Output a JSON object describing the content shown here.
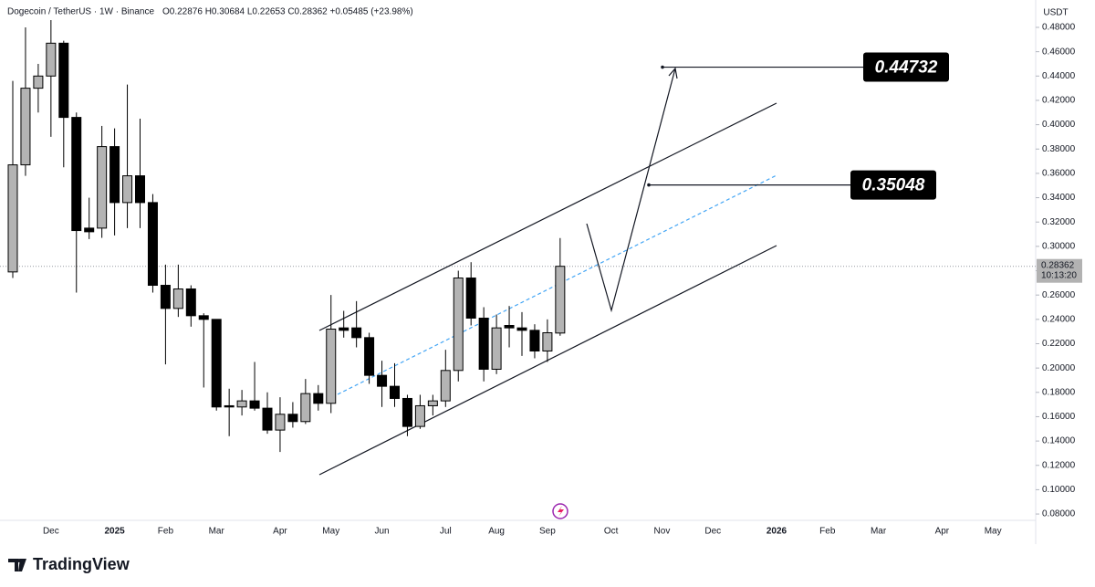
{
  "chart_data": {
    "type": "candlestick",
    "symbol": "Dogecoin / TetherUS · 1W · Binance",
    "ohlc_text": "O0.22876 H0.30684 L0.22653 C0.28362 +0.05485 (+23.98%)",
    "currency": "USDT",
    "categories": [
      null,
      null,
      null,
      "Dec",
      null,
      null,
      null,
      null,
      "2025",
      null,
      null,
      null,
      "Feb",
      null,
      null,
      null,
      "Mar",
      null,
      null,
      null,
      null,
      "Apr",
      null,
      null,
      null,
      "May",
      null,
      null,
      null,
      "Jun",
      null,
      null,
      null,
      null,
      "Jul",
      null,
      null,
      null,
      "Aug",
      null,
      null,
      null,
      "Sep",
      null,
      null,
      null,
      null,
      "Oct",
      null,
      null,
      null,
      "Nov",
      null,
      null,
      null,
      "Dec",
      null,
      null,
      null,
      null,
      "2026",
      null,
      null,
      null,
      "Feb",
      null,
      null,
      null,
      "Mar",
      null,
      null,
      null,
      null,
      "Apr",
      null,
      null,
      null,
      "May",
      null,
      null
    ],
    "open": [
      0.279,
      0.367,
      0.43,
      0.44,
      0.467,
      0.406,
      0.315,
      0.315,
      0.382,
      0.336,
      0.358,
      0.336,
      0.268,
      0.249,
      0.265,
      0.243,
      0.24,
      0.169,
      0.168,
      0.173,
      0.167,
      0.149,
      0.162,
      0.156,
      0.179,
      0.171,
      0.233,
      0.233,
      0.225,
      0.194,
      0.185,
      0.175,
      0.152,
      0.169,
      0.173,
      0.198,
      0.274,
      0.241,
      0.199,
      0.235,
      0.233,
      0.231,
      0.214,
      0.22876,
      null,
      null,
      null,
      null,
      null,
      null,
      null,
      null,
      null,
      null,
      null,
      null,
      null,
      null,
      null,
      null,
      null,
      null,
      null,
      null,
      null,
      null,
      null,
      null,
      null,
      null,
      null,
      null,
      null,
      null,
      null,
      null,
      null,
      null,
      null,
      null
    ],
    "high": [
      0.436,
      0.48,
      0.45,
      0.486,
      0.469,
      0.41,
      0.34,
      0.399,
      0.397,
      0.433,
      0.405,
      0.343,
      0.285,
      0.285,
      0.268,
      0.245,
      0.24,
      0.183,
      0.182,
      0.205,
      0.18,
      0.176,
      0.172,
      0.191,
      0.186,
      0.26,
      0.247,
      0.255,
      0.229,
      0.206,
      0.204,
      0.178,
      0.178,
      0.178,
      0.215,
      0.28,
      0.287,
      0.25,
      0.244,
      0.251,
      0.246,
      0.236,
      0.24,
      0.30684,
      null,
      null,
      null,
      null,
      null,
      null,
      null,
      null,
      null,
      null,
      null,
      null,
      null,
      null,
      null,
      null,
      null,
      null,
      null,
      null,
      null,
      null,
      null,
      null,
      null,
      null,
      null,
      null,
      null,
      null,
      null,
      null,
      null,
      null,
      null,
      null
    ],
    "low": [
      0.274,
      0.358,
      0.41,
      0.39,
      0.365,
      0.262,
      0.306,
      0.307,
      0.309,
      0.315,
      0.315,
      0.262,
      0.203,
      0.242,
      0.234,
      0.184,
      0.165,
      0.144,
      0.161,
      0.165,
      0.146,
      0.131,
      0.151,
      0.154,
      0.165,
      0.163,
      0.225,
      0.217,
      0.187,
      0.168,
      0.168,
      0.144,
      0.15,
      0.161,
      0.168,
      0.189,
      0.235,
      0.189,
      0.195,
      0.217,
      0.21,
      0.208,
      0.205,
      0.22653,
      null,
      null,
      null,
      null,
      null,
      null,
      null,
      null,
      null,
      null,
      null,
      null,
      null,
      null,
      null,
      null,
      null,
      null,
      null,
      null,
      null,
      null,
      null,
      null,
      null,
      null,
      null,
      null,
      null,
      null,
      null,
      null,
      null,
      null,
      null,
      null
    ],
    "close": [
      0.367,
      0.43,
      0.44,
      0.467,
      0.406,
      0.313,
      0.312,
      0.382,
      0.336,
      0.358,
      0.336,
      0.268,
      0.249,
      0.265,
      0.243,
      0.24,
      0.168,
      0.168,
      0.173,
      0.167,
      0.149,
      0.162,
      0.156,
      0.179,
      0.171,
      0.232,
      0.231,
      0.225,
      0.194,
      0.185,
      0.175,
      0.152,
      0.169,
      0.173,
      0.198,
      0.274,
      0.241,
      0.199,
      0.233,
      0.233,
      0.231,
      0.214,
      0.229,
      0.28362,
      null,
      null,
      null,
      null,
      null,
      null,
      null,
      null,
      null,
      null,
      null,
      null,
      null,
      null,
      null,
      null,
      null,
      null,
      null,
      null,
      null,
      null,
      null,
      null,
      null,
      null,
      null,
      null,
      null,
      null,
      null,
      null,
      null,
      null,
      null,
      null
    ],
    "up_color": "#b4b4b4",
    "down_color": "#000000",
    "ylim": [
      0.0748,
      0.5025
    ],
    "yticks": [
      {
        "value": 0.08,
        "label": "0.08000"
      },
      {
        "value": 0.1,
        "label": "0.10000"
      },
      {
        "value": 0.12,
        "label": "0.12000"
      },
      {
        "value": 0.14,
        "label": "0.14000"
      },
      {
        "value": 0.16,
        "label": "0.16000"
      },
      {
        "value": 0.18,
        "label": "0.18000"
      },
      {
        "value": 0.2,
        "label": "0.20000"
      },
      {
        "value": 0.22,
        "label": "0.22000"
      },
      {
        "value": 0.24,
        "label": "0.24000"
      },
      {
        "value": 0.26,
        "label": "0.26000"
      },
      {
        "value": 0.28,
        "label": "0.28000"
      },
      {
        "value": 0.3,
        "label": "0.30000"
      },
      {
        "value": 0.32,
        "label": "0.32000"
      },
      {
        "value": 0.34,
        "label": "0.34000"
      },
      {
        "value": 0.36,
        "label": "0.36000"
      },
      {
        "value": 0.38,
        "label": "0.38000"
      },
      {
        "value": 0.4,
        "label": "0.40000"
      },
      {
        "value": 0.42,
        "label": "0.42000"
      },
      {
        "value": 0.44,
        "label": "0.44000"
      },
      {
        "value": 0.46,
        "label": "0.46000"
      },
      {
        "value": 0.48,
        "label": "0.48000"
      }
    ],
    "current_price": 0.28362,
    "countdown": "10:13:20",
    "targets": [
      0.44732,
      0.35048
    ]
  },
  "brand": "TradingView"
}
